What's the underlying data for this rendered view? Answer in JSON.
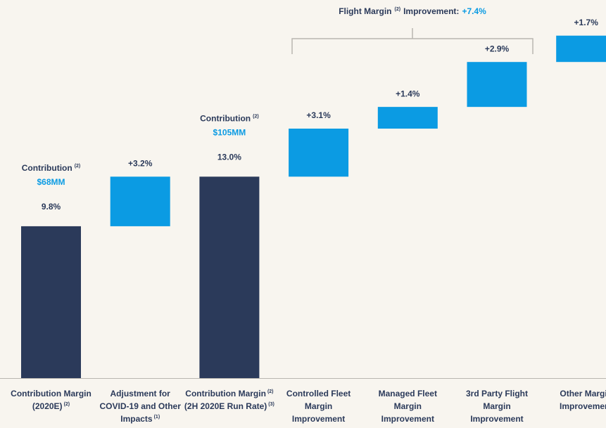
{
  "chart_data": {
    "type": "waterfall",
    "title": {
      "text": "Flight Margin",
      "note": "(2)",
      "rest": "Improvement:",
      "total": 7.4,
      "total_label": "+7.4%"
    },
    "categories": [
      [
        {
          "text": "Contribution Margin"
        },
        {
          "text": "(2020E)",
          "note": "(2)"
        }
      ],
      [
        "Adjustment for",
        "COVID-19 and Other",
        {
          "text": "Impacts",
          "note": "(1)"
        }
      ],
      [
        {
          "text": "Contribution Margin",
          "note": "(2)"
        },
        {
          "text": "(2H 2020E Run Rate)",
          "note": "(3)"
        }
      ],
      [
        "Controlled Fleet",
        "Margin",
        "Improvement"
      ],
      [
        "Managed Fleet",
        "Margin",
        "Improvement"
      ],
      [
        "3rd Party Flight",
        "Margin",
        "Improvement"
      ],
      [
        "Other Margin",
        "Improvement"
      ]
    ],
    "values": [
      9.8,
      3.2,
      13.0,
      3.1,
      1.4,
      2.9,
      1.7
    ],
    "value_labels": [
      "9.8%",
      "+3.2%",
      "13.0%",
      "+3.1%",
      "+1.4%",
      "+2.9%",
      "+1.7%"
    ],
    "kinds": [
      "total",
      "increase",
      "total",
      "increase",
      "increase",
      "increase",
      "increase"
    ],
    "colors": {
      "total": "#2b3a5a",
      "increase": "#0b9be3"
    },
    "bar_notes": [
      {
        "label": "Contribution",
        "note": "(2)",
        "amount": "$68MM"
      },
      null,
      {
        "label": "Contribution",
        "note": "(2)",
        "amount": "$105MM"
      },
      null,
      null,
      null,
      null
    ],
    "ylim": [
      0,
      24.4
    ]
  }
}
